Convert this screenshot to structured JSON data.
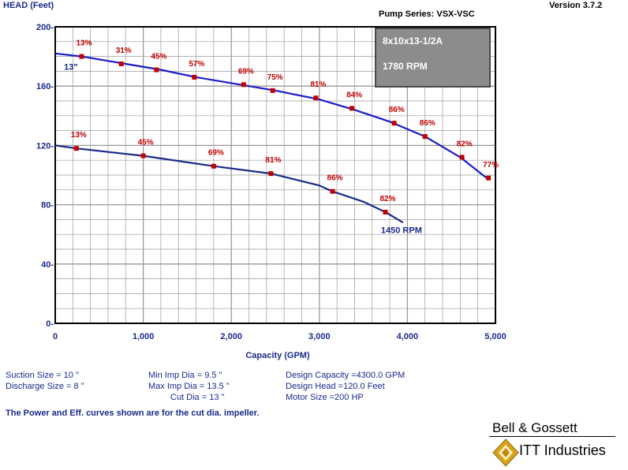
{
  "header": {
    "y_axis_title": "HEAD (Feet)",
    "pump_series": "Pump Series: VSX-VSC",
    "version": "Version 3.7.2"
  },
  "chart_data": {
    "type": "line",
    "title": "",
    "xlabel": "Capacity (GPM)",
    "ylabel": "HEAD (Feet)",
    "xlim": [
      0,
      5000
    ],
    "ylim": [
      0,
      200
    ],
    "x_tick_labels": [
      "0",
      "1,000",
      "2,000",
      "3,000",
      "4,000",
      "5,000"
    ],
    "y_tick_labels": [
      "0-",
      "40-",
      "80-",
      "120-",
      "160-",
      "200-"
    ],
    "grid": true,
    "info_box": {
      "line1": "8x10x13-1/2A",
      "line2": "1780 RPM"
    },
    "series": [
      {
        "name": "13\"",
        "color": "#1b1bc8",
        "curve": [
          [
            0,
            182
          ],
          [
            300,
            180
          ],
          [
            800,
            175
          ],
          [
            1200,
            171
          ],
          [
            1600,
            166
          ],
          [
            2100,
            161
          ],
          [
            2500,
            157
          ],
          [
            3000,
            151
          ],
          [
            3400,
            144
          ],
          [
            3800,
            136
          ],
          [
            4200,
            126
          ],
          [
            4600,
            112
          ],
          [
            4900,
            98
          ]
        ],
        "points": [
          {
            "x": 300,
            "y": 180,
            "label": "13%"
          },
          {
            "x": 750,
            "y": 175,
            "label": "31%"
          },
          {
            "x": 1150,
            "y": 171,
            "label": "45%"
          },
          {
            "x": 1580,
            "y": 166,
            "label": "57%"
          },
          {
            "x": 2140,
            "y": 161,
            "label": "69%"
          },
          {
            "x": 2470,
            "y": 157,
            "label": "75%"
          },
          {
            "x": 2960,
            "y": 152,
            "label": "81%"
          },
          {
            "x": 3370,
            "y": 145,
            "label": "84%"
          },
          {
            "x": 3850,
            "y": 135,
            "label": "86%"
          },
          {
            "x": 4200,
            "y": 126,
            "label": "86%"
          },
          {
            "x": 4620,
            "y": 112,
            "label": "82%"
          },
          {
            "x": 4920,
            "y": 98,
            "label": "77%"
          }
        ]
      },
      {
        "name": "1450 RPM",
        "color": "#1a2a8a",
        "curve": [
          [
            0,
            120
          ],
          [
            240,
            118
          ],
          [
            1000,
            113
          ],
          [
            1800,
            106
          ],
          [
            2450,
            101
          ],
          [
            3000,
            93
          ],
          [
            3150,
            89
          ],
          [
            3500,
            82
          ],
          [
            3750,
            75
          ],
          [
            3950,
            68
          ]
        ],
        "points": [
          {
            "x": 240,
            "y": 118,
            "label": "13%"
          },
          {
            "x": 1000,
            "y": 113,
            "label": "45%"
          },
          {
            "x": 1800,
            "y": 106,
            "label": "69%"
          },
          {
            "x": 2450,
            "y": 101,
            "label": "81%"
          },
          {
            "x": 3150,
            "y": 89,
            "label": "86%"
          },
          {
            "x": 3750,
            "y": 75,
            "label": "82%"
          }
        ]
      }
    ]
  },
  "specs": {
    "suction_size": "Suction Size = 10 \"",
    "discharge_size": "Discharge Size = 8 \"",
    "min_imp_dia": "Min Imp Dia = 9.5 \"",
    "max_imp_dia": "Max Imp Dia = 13.5 \"",
    "cut_dia": "Cut Dia = 13 \"",
    "design_capacity": "Design Capacity =4300.0 GPM",
    "design_head": "Design Head =120.0 Feet",
    "motor_size": "Motor Size =200 HP"
  },
  "note": "The Power and Eff. curves shown are for the cut dia. impeller.",
  "brand": {
    "name": "Bell & Gossett",
    "sub": "ITT Industries"
  },
  "colors": {
    "curve_13in": "#1b1bc8",
    "curve_1450": "#1a2a8a",
    "efficiency_label": "#c00000",
    "grid": "#9a9a9a",
    "info_box": "#8c8c8c"
  }
}
